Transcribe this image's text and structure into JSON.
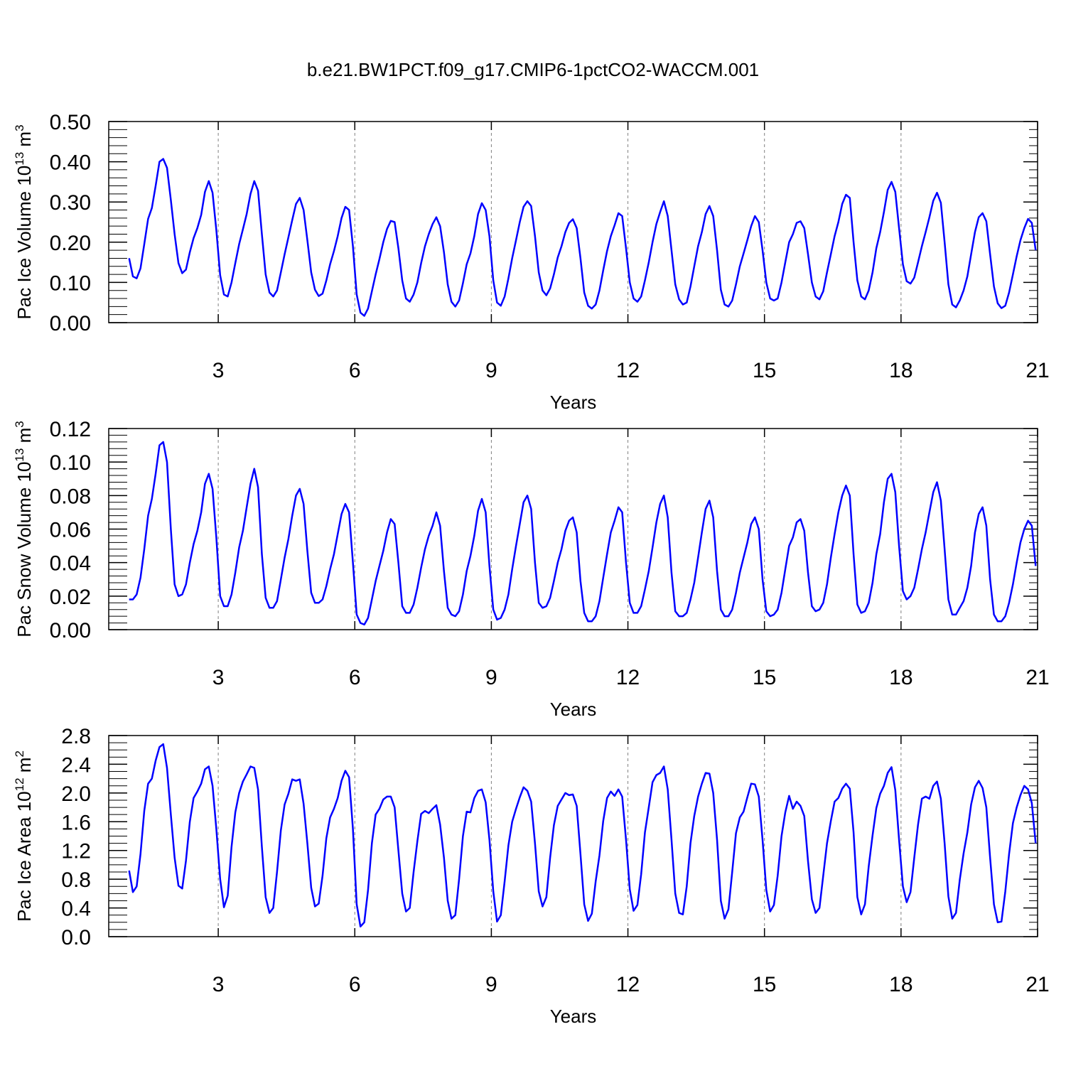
{
  "title": "b.e21.BW1PCT.f09_g17.CMIP6-1pctCO2-WACCM.001",
  "colors": {
    "series": "#0000ff",
    "axis": "#000000",
    "grid": "#808080"
  },
  "chart_data": [
    {
      "type": "line",
      "ylabel_text": "Pac Ice Volume 10",
      "ylabel_exp": "13",
      "ylabel_unit": " m",
      "ylabel_unit_exp": "3",
      "xlabel": "Years",
      "xlim": [
        1,
        21
      ],
      "ylim": [
        0,
        0.5
      ],
      "xticks": [
        3,
        6,
        9,
        12,
        15,
        18,
        21
      ],
      "yticks": [
        0.0,
        0.1,
        0.2,
        0.3,
        0.4,
        0.5
      ],
      "ytick_labels": [
        "0.00",
        "0.10",
        "0.20",
        "0.30",
        "0.40",
        "0.50"
      ],
      "yminor_step": 0.02,
      "grid": "vertical dashed at major x ticks",
      "x_start": 1.0417,
      "x_step": 0.08333,
      "values": [
        0.16,
        0.115,
        0.11,
        0.135,
        0.195,
        0.258,
        0.285,
        0.34,
        0.4,
        0.407,
        0.385,
        0.305,
        0.22,
        0.148,
        0.123,
        0.132,
        0.175,
        0.21,
        0.235,
        0.268,
        0.325,
        0.352,
        0.323,
        0.23,
        0.118,
        0.07,
        0.065,
        0.1,
        0.148,
        0.195,
        0.232,
        0.27,
        0.32,
        0.352,
        0.328,
        0.22,
        0.12,
        0.075,
        0.065,
        0.08,
        0.125,
        0.17,
        0.212,
        0.255,
        0.295,
        0.31,
        0.28,
        0.205,
        0.125,
        0.082,
        0.066,
        0.072,
        0.105,
        0.145,
        0.178,
        0.215,
        0.26,
        0.288,
        0.28,
        0.19,
        0.07,
        0.025,
        0.017,
        0.035,
        0.078,
        0.12,
        0.158,
        0.2,
        0.233,
        0.253,
        0.25,
        0.185,
        0.105,
        0.06,
        0.052,
        0.07,
        0.1,
        0.148,
        0.19,
        0.22,
        0.245,
        0.262,
        0.24,
        0.175,
        0.095,
        0.052,
        0.04,
        0.055,
        0.098,
        0.145,
        0.172,
        0.215,
        0.27,
        0.297,
        0.28,
        0.215,
        0.105,
        0.05,
        0.042,
        0.065,
        0.11,
        0.16,
        0.205,
        0.25,
        0.288,
        0.302,
        0.29,
        0.215,
        0.125,
        0.08,
        0.068,
        0.085,
        0.12,
        0.162,
        0.19,
        0.225,
        0.248,
        0.257,
        0.235,
        0.16,
        0.075,
        0.042,
        0.035,
        0.045,
        0.08,
        0.13,
        0.178,
        0.215,
        0.242,
        0.272,
        0.265,
        0.185,
        0.1,
        0.06,
        0.052,
        0.065,
        0.105,
        0.15,
        0.2,
        0.245,
        0.275,
        0.302,
        0.265,
        0.18,
        0.095,
        0.058,
        0.045,
        0.05,
        0.09,
        0.14,
        0.19,
        0.225,
        0.27,
        0.29,
        0.265,
        0.18,
        0.082,
        0.045,
        0.04,
        0.055,
        0.095,
        0.14,
        0.172,
        0.205,
        0.24,
        0.265,
        0.25,
        0.18,
        0.1,
        0.06,
        0.055,
        0.06,
        0.1,
        0.15,
        0.2,
        0.22,
        0.248,
        0.252,
        0.235,
        0.17,
        0.1,
        0.065,
        0.058,
        0.078,
        0.125,
        0.17,
        0.215,
        0.25,
        0.295,
        0.318,
        0.31,
        0.2,
        0.105,
        0.065,
        0.058,
        0.08,
        0.125,
        0.185,
        0.225,
        0.275,
        0.33,
        0.35,
        0.325,
        0.235,
        0.145,
        0.103,
        0.097,
        0.112,
        0.15,
        0.19,
        0.225,
        0.262,
        0.303,
        0.323,
        0.298,
        0.2,
        0.095,
        0.045,
        0.038,
        0.055,
        0.08,
        0.115,
        0.17,
        0.225,
        0.262,
        0.272,
        0.252,
        0.17,
        0.09,
        0.048,
        0.036,
        0.042,
        0.075,
        0.12,
        0.165,
        0.205,
        0.235,
        0.258,
        0.248,
        0.18
      ]
    },
    {
      "type": "line",
      "ylabel_text": "Pac Snow Volume 10",
      "ylabel_exp": "13",
      "ylabel_unit": " m",
      "ylabel_unit_exp": "3",
      "xlabel": "Years",
      "xlim": [
        1,
        21
      ],
      "ylim": [
        0,
        0.12
      ],
      "xticks": [
        3,
        6,
        9,
        12,
        15,
        18,
        21
      ],
      "yticks": [
        0.0,
        0.02,
        0.04,
        0.06,
        0.08,
        0.1,
        0.12
      ],
      "ytick_labels": [
        "0.00",
        "0.02",
        "0.04",
        "0.06",
        "0.08",
        "0.10",
        "0.12"
      ],
      "yminor_step": 0.004,
      "grid": "vertical dashed at major x ticks",
      "x_start": 1.0417,
      "x_step": 0.08333,
      "values": [
        0.018,
        0.018,
        0.021,
        0.031,
        0.048,
        0.068,
        0.078,
        0.093,
        0.11,
        0.112,
        0.1,
        0.06,
        0.027,
        0.02,
        0.021,
        0.027,
        0.04,
        0.051,
        0.059,
        0.07,
        0.087,
        0.093,
        0.084,
        0.055,
        0.02,
        0.014,
        0.014,
        0.021,
        0.034,
        0.049,
        0.059,
        0.073,
        0.087,
        0.096,
        0.085,
        0.045,
        0.019,
        0.013,
        0.013,
        0.017,
        0.03,
        0.043,
        0.054,
        0.068,
        0.08,
        0.084,
        0.075,
        0.047,
        0.022,
        0.016,
        0.016,
        0.018,
        0.026,
        0.036,
        0.045,
        0.057,
        0.069,
        0.075,
        0.07,
        0.04,
        0.009,
        0.004,
        0.003,
        0.007,
        0.018,
        0.029,
        0.038,
        0.047,
        0.058,
        0.066,
        0.063,
        0.04,
        0.014,
        0.01,
        0.01,
        0.015,
        0.025,
        0.037,
        0.048,
        0.056,
        0.062,
        0.07,
        0.062,
        0.035,
        0.013,
        0.009,
        0.008,
        0.011,
        0.021,
        0.035,
        0.044,
        0.056,
        0.071,
        0.078,
        0.07,
        0.038,
        0.012,
        0.006,
        0.007,
        0.012,
        0.021,
        0.036,
        0.05,
        0.063,
        0.076,
        0.08,
        0.072,
        0.04,
        0.016,
        0.013,
        0.014,
        0.019,
        0.029,
        0.04,
        0.048,
        0.059,
        0.065,
        0.067,
        0.058,
        0.029,
        0.01,
        0.005,
        0.005,
        0.008,
        0.017,
        0.031,
        0.045,
        0.058,
        0.065,
        0.073,
        0.07,
        0.04,
        0.016,
        0.01,
        0.01,
        0.014,
        0.024,
        0.035,
        0.049,
        0.064,
        0.075,
        0.08,
        0.067,
        0.034,
        0.011,
        0.008,
        0.008,
        0.01,
        0.018,
        0.028,
        0.043,
        0.058,
        0.072,
        0.077,
        0.067,
        0.035,
        0.012,
        0.008,
        0.008,
        0.012,
        0.022,
        0.034,
        0.043,
        0.052,
        0.063,
        0.067,
        0.06,
        0.03,
        0.011,
        0.008,
        0.009,
        0.012,
        0.022,
        0.036,
        0.05,
        0.055,
        0.064,
        0.066,
        0.059,
        0.034,
        0.014,
        0.011,
        0.012,
        0.016,
        0.027,
        0.043,
        0.057,
        0.07,
        0.08,
        0.086,
        0.08,
        0.045,
        0.015,
        0.01,
        0.011,
        0.016,
        0.028,
        0.045,
        0.057,
        0.076,
        0.09,
        0.093,
        0.082,
        0.05,
        0.023,
        0.018,
        0.02,
        0.025,
        0.036,
        0.048,
        0.058,
        0.07,
        0.082,
        0.088,
        0.077,
        0.048,
        0.018,
        0.009,
        0.009,
        0.013,
        0.017,
        0.025,
        0.038,
        0.058,
        0.069,
        0.073,
        0.062,
        0.03,
        0.009,
        0.005,
        0.005,
        0.008,
        0.016,
        0.027,
        0.04,
        0.052,
        0.06,
        0.065,
        0.062,
        0.038
      ]
    },
    {
      "type": "line",
      "ylabel_text": "Pac Ice Area 10",
      "ylabel_exp": "12",
      "ylabel_unit": " m",
      "ylabel_unit_exp": "2",
      "xlabel": "Years",
      "xlim": [
        1,
        21
      ],
      "ylim": [
        0,
        2.8
      ],
      "xticks": [
        3,
        6,
        9,
        12,
        15,
        18,
        21
      ],
      "yticks": [
        0.0,
        0.4,
        0.8,
        1.2,
        1.6,
        2.0,
        2.4,
        2.8
      ],
      "ytick_labels": [
        "0.0",
        "0.4",
        "0.8",
        "1.2",
        "1.6",
        "2.0",
        "2.4",
        "2.8"
      ],
      "yminor_step": 0.1,
      "grid": "vertical dashed at major x ticks",
      "x_start": 1.0417,
      "x_step": 0.08333,
      "values": [
        0.92,
        0.62,
        0.7,
        1.15,
        1.75,
        2.13,
        2.2,
        2.45,
        2.64,
        2.68,
        2.35,
        1.7,
        1.1,
        0.71,
        0.67,
        1.06,
        1.6,
        1.93,
        2.02,
        2.13,
        2.33,
        2.37,
        2.1,
        1.5,
        0.8,
        0.41,
        0.57,
        1.25,
        1.73,
        2.0,
        2.16,
        2.26,
        2.37,
        2.35,
        2.05,
        1.25,
        0.55,
        0.33,
        0.4,
        0.9,
        1.48,
        1.84,
        1.99,
        2.19,
        2.17,
        2.19,
        1.85,
        1.3,
        0.68,
        0.42,
        0.46,
        0.85,
        1.37,
        1.66,
        1.78,
        1.93,
        2.17,
        2.31,
        2.22,
        1.5,
        0.45,
        0.14,
        0.2,
        0.65,
        1.3,
        1.7,
        1.78,
        1.91,
        1.95,
        1.95,
        1.8,
        1.2,
        0.6,
        0.35,
        0.4,
        0.9,
        1.33,
        1.71,
        1.75,
        1.72,
        1.78,
        1.83,
        1.56,
        1.1,
        0.5,
        0.25,
        0.3,
        0.8,
        1.4,
        1.74,
        1.73,
        1.93,
        2.03,
        2.05,
        1.87,
        1.35,
        0.63,
        0.21,
        0.3,
        0.77,
        1.27,
        1.6,
        1.78,
        1.94,
        2.08,
        2.03,
        1.88,
        1.3,
        0.63,
        0.42,
        0.55,
        1.1,
        1.55,
        1.82,
        1.91,
        2.0,
        1.97,
        1.98,
        1.82,
        1.15,
        0.45,
        0.22,
        0.32,
        0.77,
        1.13,
        1.61,
        1.93,
        2.02,
        1.96,
        2.05,
        1.95,
        1.35,
        0.66,
        0.36,
        0.44,
        0.87,
        1.45,
        1.8,
        2.15,
        2.25,
        2.28,
        2.37,
        2.05,
        1.35,
        0.6,
        0.33,
        0.31,
        0.7,
        1.3,
        1.68,
        1.95,
        2.13,
        2.28,
        2.27,
        2.0,
        1.35,
        0.5,
        0.25,
        0.38,
        0.9,
        1.44,
        1.66,
        1.74,
        1.94,
        2.13,
        2.12,
        1.95,
        1.35,
        0.65,
        0.35,
        0.44,
        0.85,
        1.4,
        1.73,
        1.96,
        1.78,
        1.88,
        1.82,
        1.68,
        1.05,
        0.52,
        0.33,
        0.4,
        0.85,
        1.3,
        1.61,
        1.88,
        1.93,
        2.06,
        2.13,
        2.06,
        1.45,
        0.55,
        0.31,
        0.45,
        0.98,
        1.41,
        1.79,
        1.99,
        2.1,
        2.28,
        2.36,
        2.04,
        1.35,
        0.7,
        0.48,
        0.62,
        1.1,
        1.56,
        1.92,
        1.95,
        1.92,
        2.1,
        2.16,
        1.92,
        1.3,
        0.56,
        0.25,
        0.33,
        0.79,
        1.16,
        1.45,
        1.84,
        2.08,
        2.17,
        2.07,
        1.8,
        1.1,
        0.45,
        0.2,
        0.21,
        0.63,
        1.15,
        1.58,
        1.8,
        1.97,
        2.1,
        2.05,
        1.86,
        1.3
      ]
    }
  ]
}
